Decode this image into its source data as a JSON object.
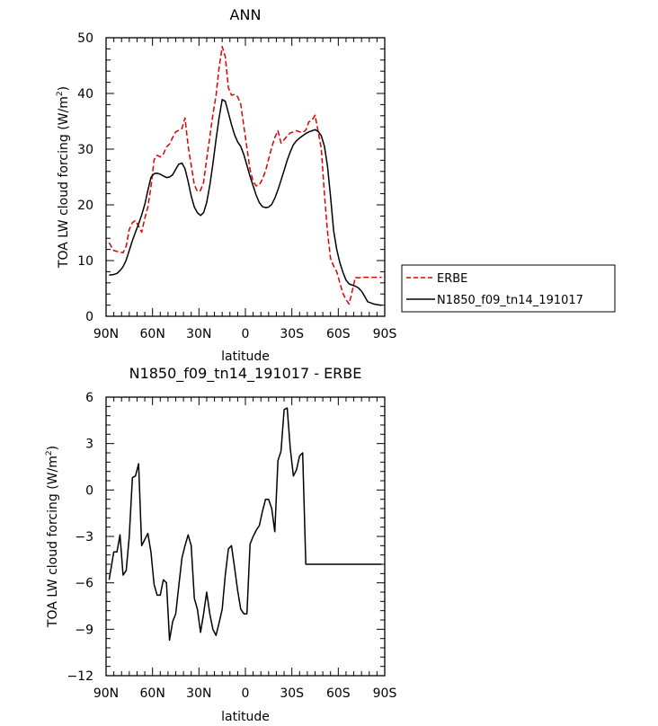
{
  "chart_data": [
    {
      "type": "line",
      "title": "ANN",
      "xlabel": "latitude",
      "ylabel": "TOA LW cloud forcing (W/m",
      "ylabel_sup": "2",
      "ylabel_end": ")",
      "xlim": [
        90,
        -90
      ],
      "ylim": [
        0,
        50
      ],
      "xticks": [
        {
          "value": 90,
          "label": "90N"
        },
        {
          "value": 60,
          "label": "60N"
        },
        {
          "value": 30,
          "label": "30N"
        },
        {
          "value": 0,
          "label": "0"
        },
        {
          "value": -30,
          "label": "30S"
        },
        {
          "value": -60,
          "label": "60S"
        },
        {
          "value": -90,
          "label": "90S"
        }
      ],
      "yticks": [
        0,
        10,
        20,
        30,
        40,
        50
      ],
      "legend": {
        "placement": "right",
        "entries": [
          "ERBE",
          "N1850_f09_tn14_191017"
        ]
      },
      "series": [
        {
          "name": "ERBE",
          "color": "#e00000",
          "dash": "dashed",
          "x": [
            88,
            85,
            81,
            79,
            77,
            75,
            73,
            71,
            69,
            67,
            65,
            63,
            61,
            59,
            57,
            55,
            53,
            51,
            49,
            47,
            45,
            43,
            41,
            39,
            37,
            35,
            33,
            31,
            29,
            27,
            25,
            23,
            21,
            19,
            17,
            15,
            13,
            11,
            9,
            7,
            5,
            3,
            1,
            -1,
            -3,
            -5,
            -7,
            -9,
            -11,
            -13,
            -15,
            -17,
            -19,
            -21,
            -23,
            -25,
            -27,
            -29,
            -31,
            -33,
            -35,
            -37,
            -39,
            -41,
            -43,
            -45,
            -47,
            -49,
            -51,
            -53,
            -55,
            -57,
            -59,
            -61,
            -63,
            -65,
            -67,
            -69,
            -71,
            -73,
            -75,
            -77,
            -79,
            -81,
            -83,
            -85,
            -87,
            -88
          ],
          "y": [
            13.2,
            11.8,
            11.5,
            11.4,
            12.6,
            15.6,
            16.8,
            17.2,
            16.2,
            15.1,
            17.6,
            19.6,
            23.2,
            28.1,
            28.9,
            28.6,
            29.1,
            30.4,
            30.9,
            32.1,
            33.1,
            33.4,
            33.7,
            35.6,
            30.6,
            27.1,
            23.6,
            22.4,
            22.6,
            24.1,
            28.2,
            32.2,
            36.2,
            39.6,
            44.6,
            48.4,
            46.6,
            41.0,
            39.7,
            39.8,
            39.4,
            38.1,
            34.1,
            30.2,
            26.3,
            24.2,
            23.4,
            23.6,
            24.6,
            26.1,
            28.2,
            30.3,
            32.1,
            33.3,
            31.1,
            31.7,
            32.4,
            32.9,
            33.1,
            33.3,
            33.1,
            33.0,
            33.4,
            34.9,
            35.2,
            36.1,
            33.2,
            30.1,
            22.2,
            15.2,
            10.4,
            9.0,
            8.0,
            6.0,
            4.1,
            3.0,
            2.2,
            4.5,
            7.0,
            6.9,
            7.0,
            7.0,
            7.0,
            7.0,
            7.0,
            7.0,
            7.0,
            7.0
          ]
        },
        {
          "name": "N1850_f09_tn14_191017",
          "color": "#000000",
          "dash": "solid",
          "x": [
            88,
            85,
            83,
            81,
            79,
            77,
            75,
            73,
            71,
            69,
            67,
            65,
            63,
            61,
            59,
            57,
            55,
            53,
            51,
            49,
            47,
            45,
            43,
            41,
            39,
            37,
            35,
            33,
            31,
            29,
            27,
            25,
            23,
            21,
            19,
            17,
            15,
            13,
            11,
            9,
            7,
            5,
            3,
            1,
            -1,
            -3,
            -5,
            -7,
            -9,
            -11,
            -13,
            -15,
            -17,
            -19,
            -21,
            -23,
            -25,
            -27,
            -29,
            -31,
            -33,
            -35,
            -37,
            -39,
            -41,
            -43,
            -45,
            -47,
            -49,
            -51,
            -53,
            -55,
            -57,
            -59,
            -61,
            -63,
            -65,
            -67,
            -69,
            -71,
            -73,
            -75,
            -77,
            -79,
            -81,
            -83,
            -85,
            -87,
            -88
          ],
          "y": [
            7.4,
            7.5,
            7.7,
            8.2,
            8.9,
            10.1,
            11.8,
            13.6,
            15.1,
            16.6,
            18.2,
            20.1,
            22.6,
            24.9,
            25.6,
            25.7,
            25.5,
            25.2,
            24.9,
            25.0,
            25.4,
            26.4,
            27.3,
            27.5,
            26.5,
            24.2,
            21.6,
            19.6,
            18.6,
            18.1,
            18.6,
            20.4,
            23.5,
            27.3,
            31.7,
            35.6,
            38.9,
            38.6,
            36.5,
            34.4,
            32.6,
            31.3,
            30.5,
            29.0,
            27.1,
            25.1,
            23.4,
            21.7,
            20.4,
            19.7,
            19.5,
            19.6,
            20.1,
            21.2,
            22.7,
            24.4,
            26.2,
            28.0,
            29.5,
            30.8,
            31.5,
            32.0,
            32.4,
            32.8,
            33.1,
            33.3,
            33.5,
            33.2,
            32.4,
            30.6,
            27.0,
            21.5,
            15.3,
            12.0,
            9.6,
            7.9,
            6.5,
            5.8,
            5.6,
            5.4,
            5.1,
            4.5,
            3.6,
            2.6,
            2.4,
            2.2,
            2.1,
            2.0,
            2.0
          ]
        }
      ]
    },
    {
      "type": "line",
      "title": "N1850_f09_tn14_191017 - ERBE",
      "xlabel": "latitude",
      "ylabel": "TOA LW cloud forcing (W/m",
      "ylabel_sup": "2",
      "ylabel_end": ")",
      "xlim": [
        90,
        -90
      ],
      "ylim": [
        -12,
        6
      ],
      "xticks": [
        {
          "value": 90,
          "label": "90N"
        },
        {
          "value": 60,
          "label": "60N"
        },
        {
          "value": 30,
          "label": "30N"
        },
        {
          "value": 0,
          "label": "0"
        },
        {
          "value": -30,
          "label": "30S"
        },
        {
          "value": -60,
          "label": "60S"
        },
        {
          "value": -90,
          "label": "90S"
        }
      ],
      "yticks": [
        -12,
        -9,
        -6,
        -3,
        0,
        3,
        6
      ],
      "series": [
        {
          "color": "#000000",
          "dash": "solid",
          "x": [
            88,
            85,
            83,
            81,
            79,
            77,
            75,
            73,
            71,
            69,
            67,
            65,
            63,
            61,
            59,
            57,
            55,
            53,
            51,
            49,
            47,
            45,
            43,
            41,
            39,
            37,
            35,
            33,
            31,
            29,
            27,
            25,
            23,
            21,
            19,
            17,
            15,
            13,
            11,
            9,
            7,
            5,
            3,
            1,
            -1,
            -3,
            -5,
            -7,
            -9,
            -11,
            -13,
            -15,
            -17,
            -19,
            -21,
            -23,
            -25,
            -27,
            -29,
            -31,
            -33,
            -35,
            -37,
            -39,
            -41,
            -43,
            -45,
            -47,
            -49,
            -51,
            -53,
            -55,
            -57,
            -59,
            -61,
            -63,
            -65,
            -67,
            -69,
            -71,
            -73,
            -75,
            -77,
            -79,
            -81,
            -83,
            -85,
            -87,
            -88
          ],
          "y": [
            -5.8,
            -4.0,
            -4.0,
            -2.9,
            -5.5,
            -5.2,
            -3.0,
            0.8,
            0.9,
            1.7,
            -3.6,
            -3.2,
            -2.8,
            -4.0,
            -6.1,
            -6.8,
            -6.8,
            -5.8,
            -6.0,
            -9.7,
            -8.5,
            -8.0,
            -6.2,
            -4.4,
            -3.6,
            -2.9,
            -3.6,
            -7.0,
            -7.7,
            -9.2,
            -8.0,
            -6.6,
            -8.0,
            -9.0,
            -9.4,
            -8.6,
            -7.7,
            -5.5,
            -3.8,
            -3.6,
            -5.0,
            -6.5,
            -7.7,
            -8.0,
            -8.0,
            -3.5,
            -3.0,
            -2.6,
            -2.3,
            -1.4,
            -0.6,
            -0.6,
            -1.2,
            -2.7,
            1.9,
            2.5,
            5.2,
            5.3,
            2.7,
            0.9,
            1.3,
            2.2,
            2.4,
            -4.8,
            -4.8,
            -4.8,
            -4.8,
            -4.8,
            -4.8,
            -4.8,
            -4.8,
            -4.8,
            -4.8,
            -4.8,
            -4.8,
            -4.8,
            -4.8,
            -4.8,
            -4.8,
            -4.8,
            -4.8,
            -4.8,
            -4.8,
            -4.8,
            -4.8,
            -4.8,
            -4.8,
            -4.8,
            -4.8
          ]
        }
      ]
    }
  ]
}
